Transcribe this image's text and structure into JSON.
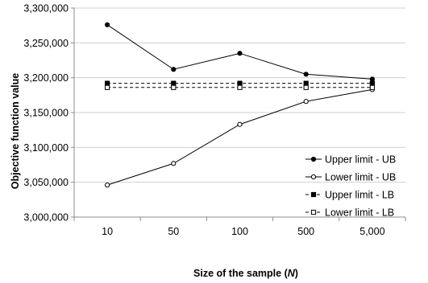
{
  "chart_data": {
    "type": "line",
    "categories": [
      "10",
      "50",
      "100",
      "500",
      "5,000"
    ],
    "series": [
      {
        "name": "Upper limit - UB",
        "values": [
          3276000,
          3212000,
          3235000,
          3205000,
          3198000
        ],
        "marker": "filled-circle",
        "line": "solid"
      },
      {
        "name": "Lower limit - UB",
        "values": [
          3046000,
          3077000,
          3133000,
          3166000,
          3183000
        ],
        "marker": "open-circle",
        "line": "solid"
      },
      {
        "name": "Upper limit - LB",
        "values": [
          3192000,
          3192000,
          3192000,
          3192000,
          3192000
        ],
        "marker": "filled-square",
        "line": "dashed"
      },
      {
        "name": "Lower limit - LB",
        "values": [
          3186000,
          3186000,
          3186000,
          3186000,
          3186000
        ],
        "marker": "open-square",
        "line": "dashed"
      }
    ],
    "ylim": [
      3000000,
      3300000
    ],
    "yticks": [
      {
        "value": 3000000,
        "label": "3,000,000"
      },
      {
        "value": 3050000,
        "label": "3,050,000"
      },
      {
        "value": 3100000,
        "label": "3,100,000"
      },
      {
        "value": 3150000,
        "label": "3,150,000"
      },
      {
        "value": 3200000,
        "label": "3,200,000"
      },
      {
        "value": 3250000,
        "label": "3,250,000"
      },
      {
        "value": 3300000,
        "label": "3,300,000"
      }
    ],
    "xlabel_main": "Size of the sample (",
    "xlabel_var": "N",
    "xlabel_end": ")",
    "ylabel": "Objective function value",
    "grid": "horizontal",
    "legend_position": "bottom-right"
  }
}
